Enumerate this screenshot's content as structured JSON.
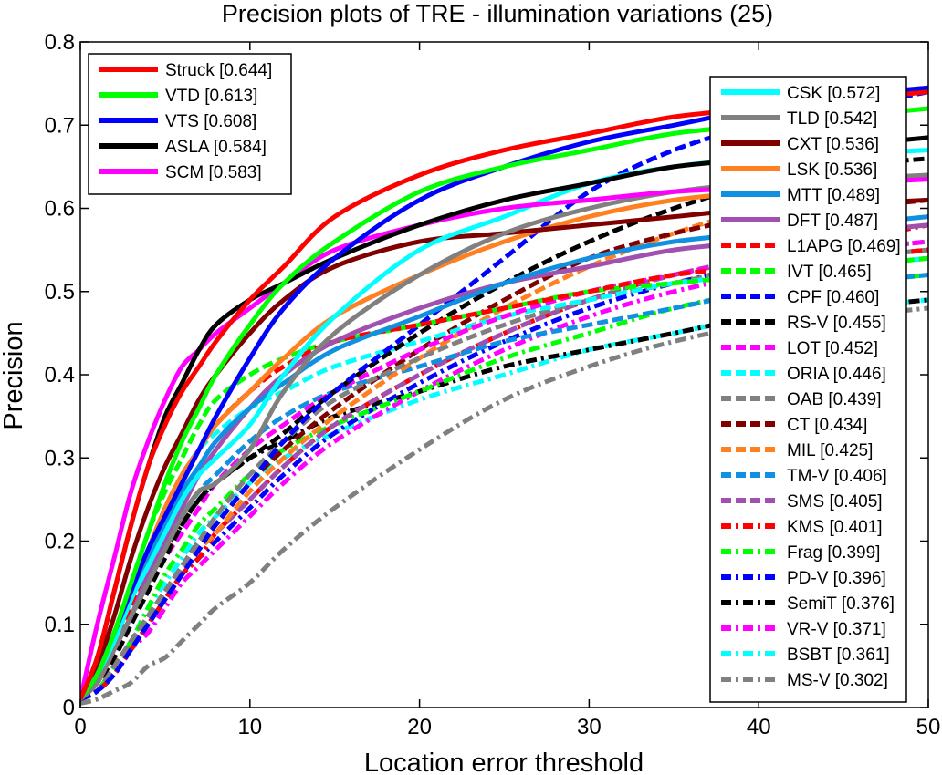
{
  "chart_data": {
    "type": "line",
    "title": "Precision plots of TRE - illumination variations (25)",
    "xlabel": "Location error threshold",
    "ylabel": "Precision",
    "xlim": [
      0,
      50
    ],
    "ylim": [
      0,
      0.8
    ],
    "xticks": [
      "0",
      "10",
      "20",
      "30",
      "40",
      "50"
    ],
    "yticks": [
      "0",
      "0.1",
      "0.2",
      "0.3",
      "0.4",
      "0.5",
      "0.6",
      "0.7",
      "0.8"
    ],
    "grid": false,
    "legend_placement": "top-left and top-right",
    "x": [
      0,
      1,
      2,
      3,
      4,
      5,
      6,
      7,
      8,
      10,
      12,
      15,
      20,
      25,
      30,
      35,
      40,
      45,
      50
    ],
    "series": [
      {
        "name": "Struck [0.644]",
        "color": "#ff0000",
        "style": "solid",
        "width": 5,
        "group": "left",
        "values": [
          0.01,
          0.06,
          0.14,
          0.22,
          0.29,
          0.34,
          0.38,
          0.41,
          0.44,
          0.49,
          0.53,
          0.59,
          0.64,
          0.67,
          0.69,
          0.71,
          0.72,
          0.73,
          0.74
        ]
      },
      {
        "name": "VTD [0.613]",
        "color": "#00ff00",
        "style": "solid",
        "width": 5,
        "group": "left",
        "values": [
          0.01,
          0.04,
          0.09,
          0.15,
          0.21,
          0.27,
          0.32,
          0.36,
          0.4,
          0.46,
          0.51,
          0.56,
          0.62,
          0.65,
          0.67,
          0.69,
          0.7,
          0.71,
          0.72
        ]
      },
      {
        "name": "VTS [0.608]",
        "color": "#0000ff",
        "style": "solid",
        "width": 5,
        "group": "left",
        "values": [
          0.01,
          0.04,
          0.09,
          0.14,
          0.19,
          0.23,
          0.27,
          0.31,
          0.35,
          0.42,
          0.48,
          0.54,
          0.61,
          0.65,
          0.68,
          0.7,
          0.72,
          0.735,
          0.745
        ]
      },
      {
        "name": "ASLA [0.584]",
        "color": "#000000",
        "style": "solid",
        "width": 5,
        "group": "left",
        "values": [
          0.01,
          0.06,
          0.14,
          0.22,
          0.29,
          0.35,
          0.39,
          0.43,
          0.46,
          0.49,
          0.51,
          0.54,
          0.58,
          0.61,
          0.63,
          0.65,
          0.66,
          0.675,
          0.685
        ]
      },
      {
        "name": "SCM [0.583]",
        "color": "#ff00ff",
        "style": "solid",
        "width": 5,
        "group": "left",
        "values": [
          0.01,
          0.1,
          0.18,
          0.26,
          0.32,
          0.37,
          0.41,
          0.43,
          0.45,
          0.48,
          0.51,
          0.55,
          0.58,
          0.6,
          0.61,
          0.62,
          0.625,
          0.63,
          0.635
        ]
      },
      {
        "name": "CSK [0.572]",
        "color": "#00ffff",
        "style": "solid",
        "width": 5,
        "group": "right",
        "values": [
          0.01,
          0.04,
          0.08,
          0.13,
          0.17,
          0.21,
          0.25,
          0.28,
          0.3,
          0.34,
          0.4,
          0.47,
          0.55,
          0.59,
          0.63,
          0.65,
          0.66,
          0.665,
          0.67
        ]
      },
      {
        "name": "TLD [0.542]",
        "color": "#808080",
        "style": "solid",
        "width": 5,
        "group": "right",
        "values": [
          0.01,
          0.03,
          0.07,
          0.11,
          0.15,
          0.19,
          0.23,
          0.26,
          0.27,
          0.31,
          0.38,
          0.45,
          0.52,
          0.57,
          0.6,
          0.62,
          0.63,
          0.635,
          0.64
        ]
      },
      {
        "name": "CXT [0.536]",
        "color": "#800000",
        "style": "solid",
        "width": 5,
        "group": "right",
        "values": [
          0.01,
          0.05,
          0.11,
          0.18,
          0.24,
          0.29,
          0.33,
          0.37,
          0.4,
          0.45,
          0.49,
          0.53,
          0.56,
          0.57,
          0.58,
          0.59,
          0.6,
          0.605,
          0.61
        ]
      },
      {
        "name": "LSK [0.536]",
        "color": "#ff8020",
        "style": "solid",
        "width": 5,
        "group": "right",
        "values": [
          0.01,
          0.04,
          0.09,
          0.14,
          0.19,
          0.24,
          0.28,
          0.31,
          0.34,
          0.38,
          0.42,
          0.47,
          0.52,
          0.56,
          0.59,
          0.61,
          0.62,
          0.63,
          0.64
        ]
      },
      {
        "name": "MTT [0.489]",
        "color": "#1090e0",
        "style": "solid",
        "width": 5,
        "group": "right",
        "values": [
          0.01,
          0.04,
          0.08,
          0.13,
          0.18,
          0.22,
          0.26,
          0.29,
          0.32,
          0.36,
          0.39,
          0.43,
          0.47,
          0.51,
          0.54,
          0.56,
          0.57,
          0.58,
          0.59
        ]
      },
      {
        "name": "DFT [0.487]",
        "color": "#a050b0",
        "style": "solid",
        "width": 5,
        "group": "right",
        "values": [
          0.01,
          0.03,
          0.07,
          0.11,
          0.16,
          0.2,
          0.24,
          0.28,
          0.31,
          0.36,
          0.4,
          0.44,
          0.48,
          0.51,
          0.53,
          0.55,
          0.56,
          0.57,
          0.58
        ]
      },
      {
        "name": "L1APG [0.469]",
        "color": "#ff0000",
        "style": "dashed",
        "width": 5,
        "group": "right",
        "values": [
          0.01,
          0.03,
          0.07,
          0.12,
          0.17,
          0.22,
          0.27,
          0.31,
          0.34,
          0.38,
          0.41,
          0.44,
          0.46,
          0.48,
          0.5,
          0.52,
          0.53,
          0.54,
          0.55
        ]
      },
      {
        "name": "IVT [0.465]",
        "color": "#00ff00",
        "style": "dashed",
        "width": 5,
        "group": "right",
        "values": [
          0.01,
          0.04,
          0.09,
          0.15,
          0.21,
          0.26,
          0.3,
          0.34,
          0.37,
          0.4,
          0.42,
          0.44,
          0.46,
          0.48,
          0.5,
          0.51,
          0.52,
          0.53,
          0.54
        ]
      },
      {
        "name": "CPF [0.460]",
        "color": "#0000ff",
        "style": "dashed",
        "width": 5,
        "group": "right",
        "values": [
          0.01,
          0.02,
          0.04,
          0.07,
          0.1,
          0.13,
          0.16,
          0.19,
          0.22,
          0.27,
          0.32,
          0.38,
          0.46,
          0.54,
          0.62,
          0.67,
          0.7,
          0.72,
          0.74
        ]
      },
      {
        "name": "RS-V [0.455]",
        "color": "#000000",
        "style": "dashed",
        "width": 5,
        "group": "right",
        "values": [
          0.01,
          0.03,
          0.06,
          0.1,
          0.14,
          0.18,
          0.22,
          0.25,
          0.27,
          0.3,
          0.33,
          0.38,
          0.45,
          0.51,
          0.56,
          0.6,
          0.63,
          0.65,
          0.66
        ]
      },
      {
        "name": "LOT [0.452]",
        "color": "#ff00ff",
        "style": "dashed",
        "width": 5,
        "group": "right",
        "values": [
          0.01,
          0.03,
          0.06,
          0.1,
          0.14,
          0.18,
          0.21,
          0.24,
          0.27,
          0.31,
          0.34,
          0.38,
          0.43,
          0.47,
          0.5,
          0.52,
          0.54,
          0.55,
          0.56
        ]
      },
      {
        "name": "ORIA [0.446]",
        "color": "#00ffff",
        "style": "dashed",
        "width": 5,
        "group": "right",
        "values": [
          0.01,
          0.04,
          0.09,
          0.14,
          0.19,
          0.24,
          0.28,
          0.31,
          0.33,
          0.36,
          0.38,
          0.41,
          0.44,
          0.47,
          0.49,
          0.51,
          0.52,
          0.53,
          0.54
        ]
      },
      {
        "name": "OAB [0.439]",
        "color": "#808080",
        "style": "dashed",
        "width": 5,
        "group": "right",
        "values": [
          0.01,
          0.02,
          0.05,
          0.08,
          0.11,
          0.14,
          0.17,
          0.2,
          0.23,
          0.28,
          0.32,
          0.37,
          0.42,
          0.46,
          0.49,
          0.51,
          0.53,
          0.54,
          0.55
        ]
      },
      {
        "name": "CT [0.434]",
        "color": "#800000",
        "style": "dashed",
        "width": 5,
        "group": "right",
        "values": [
          0.01,
          0.02,
          0.05,
          0.08,
          0.11,
          0.14,
          0.17,
          0.2,
          0.22,
          0.27,
          0.31,
          0.36,
          0.43,
          0.49,
          0.54,
          0.57,
          0.59,
          0.6,
          0.61
        ]
      },
      {
        "name": "MIL [0.425]",
        "color": "#ff8020",
        "style": "dashed",
        "width": 5,
        "group": "right",
        "values": [
          0.01,
          0.02,
          0.04,
          0.07,
          0.1,
          0.13,
          0.16,
          0.19,
          0.21,
          0.26,
          0.3,
          0.35,
          0.42,
          0.48,
          0.53,
          0.57,
          0.6,
          0.62,
          0.64
        ]
      },
      {
        "name": "TM-V [0.406]",
        "color": "#1090e0",
        "style": "dashed",
        "width": 5,
        "group": "right",
        "values": [
          0.01,
          0.03,
          0.07,
          0.11,
          0.15,
          0.19,
          0.23,
          0.26,
          0.28,
          0.32,
          0.35,
          0.38,
          0.41,
          0.44,
          0.46,
          0.48,
          0.5,
          0.51,
          0.52
        ]
      },
      {
        "name": "SMS [0.405]",
        "color": "#a050b0",
        "style": "dashed",
        "width": 5,
        "group": "right",
        "values": [
          0.01,
          0.02,
          0.04,
          0.07,
          0.1,
          0.13,
          0.16,
          0.19,
          0.21,
          0.25,
          0.29,
          0.34,
          0.4,
          0.45,
          0.49,
          0.52,
          0.54,
          0.55,
          0.56
        ]
      },
      {
        "name": "KMS [0.401]",
        "color": "#ff0000",
        "style": "dashdot",
        "width": 5,
        "group": "right",
        "values": [
          0.01,
          0.02,
          0.04,
          0.07,
          0.1,
          0.13,
          0.16,
          0.18,
          0.21,
          0.25,
          0.29,
          0.34,
          0.4,
          0.45,
          0.49,
          0.52,
          0.54,
          0.56,
          0.58
        ]
      },
      {
        "name": "Frag [0.399]",
        "color": "#00ff00",
        "style": "dashdot",
        "width": 5,
        "group": "right",
        "values": [
          0.01,
          0.02,
          0.05,
          0.08,
          0.12,
          0.16,
          0.19,
          0.22,
          0.24,
          0.28,
          0.31,
          0.34,
          0.38,
          0.42,
          0.45,
          0.48,
          0.5,
          0.51,
          0.52
        ]
      },
      {
        "name": "PD-V [0.396]",
        "color": "#0000ff",
        "style": "dashdot",
        "width": 5,
        "group": "right",
        "values": [
          0.01,
          0.02,
          0.04,
          0.07,
          0.1,
          0.13,
          0.16,
          0.18,
          0.2,
          0.24,
          0.28,
          0.33,
          0.39,
          0.44,
          0.48,
          0.51,
          0.53,
          0.54,
          0.55
        ]
      },
      {
        "name": "SemiT [0.376]",
        "color": "#000000",
        "style": "dashdot",
        "width": 5,
        "group": "right",
        "values": [
          0.01,
          0.03,
          0.07,
          0.11,
          0.15,
          0.19,
          0.22,
          0.25,
          0.27,
          0.3,
          0.32,
          0.35,
          0.38,
          0.41,
          0.43,
          0.45,
          0.47,
          0.48,
          0.49
        ]
      },
      {
        "name": "VR-V [0.371]",
        "color": "#ff00ff",
        "style": "dashdot",
        "width": 5,
        "group": "right",
        "values": [
          0.01,
          0.02,
          0.04,
          0.07,
          0.09,
          0.12,
          0.15,
          0.17,
          0.19,
          0.23,
          0.27,
          0.32,
          0.38,
          0.43,
          0.47,
          0.5,
          0.52,
          0.53,
          0.54
        ]
      },
      {
        "name": "BSBT [0.361]",
        "color": "#00ffff",
        "style": "dashdot",
        "width": 5,
        "group": "right",
        "values": [
          0.01,
          0.02,
          0.05,
          0.08,
          0.12,
          0.15,
          0.18,
          0.21,
          0.23,
          0.27,
          0.3,
          0.33,
          0.37,
          0.4,
          0.43,
          0.45,
          0.47,
          0.48,
          0.49
        ]
      },
      {
        "name": "MS-V [0.302]",
        "color": "#808080",
        "style": "dashdot",
        "width": 5,
        "group": "right",
        "values": [
          0.005,
          0.01,
          0.02,
          0.03,
          0.05,
          0.06,
          0.08,
          0.1,
          0.12,
          0.15,
          0.19,
          0.24,
          0.31,
          0.37,
          0.41,
          0.44,
          0.46,
          0.47,
          0.48
        ]
      }
    ]
  }
}
